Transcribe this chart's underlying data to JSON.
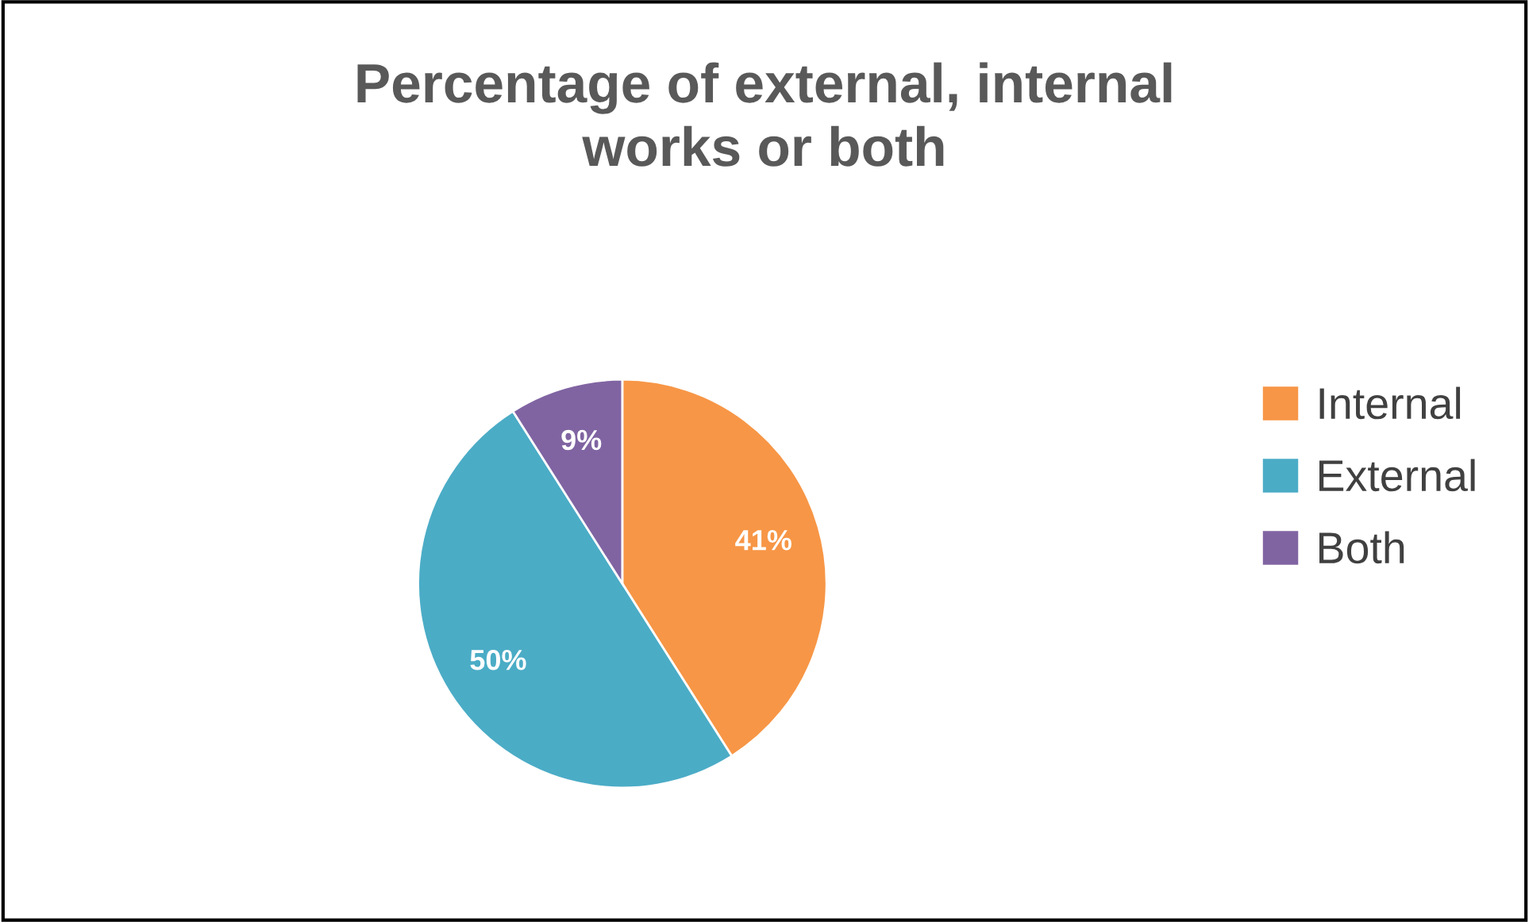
{
  "chart_data": {
    "type": "pie",
    "title": "Percentage of external, internal\nworks or both",
    "categories": [
      "Internal",
      "External",
      "Both"
    ],
    "values": [
      41,
      50,
      9
    ],
    "colors": [
      "#f79646",
      "#4bacc6",
      "#8064a2"
    ],
    "value_labels": [
      "41%",
      "50%",
      "9%"
    ],
    "legend": "right"
  }
}
